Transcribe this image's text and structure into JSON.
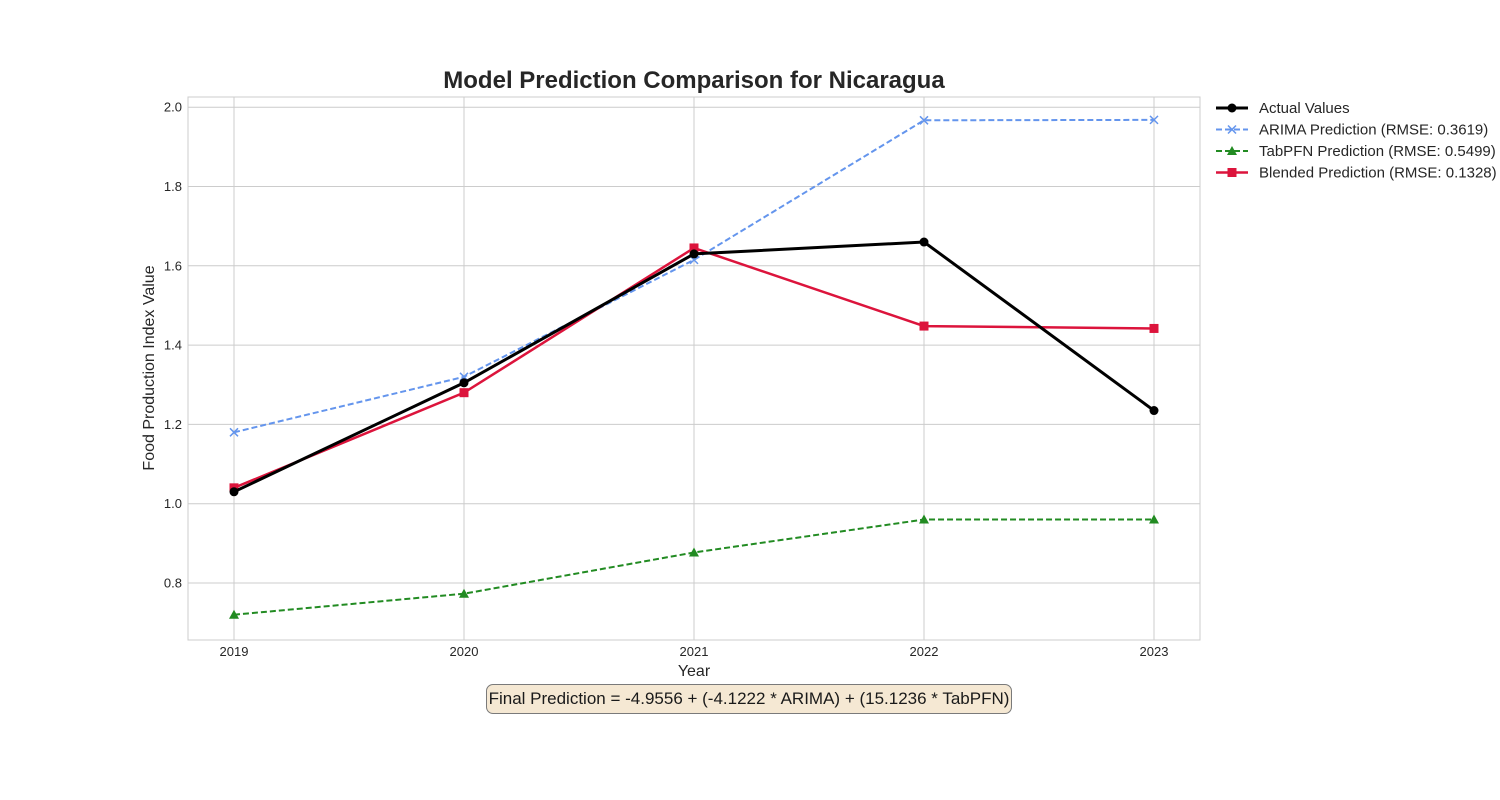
{
  "chart_data": {
    "type": "line",
    "title": "Model Prediction Comparison for Nicaragua",
    "xlabel": "Year",
    "ylabel": "Food Production Index Value",
    "x": [
      "2019",
      "2020",
      "2021",
      "2022",
      "2023"
    ],
    "xticks": [
      "2019",
      "2020",
      "2021",
      "2022",
      "2023"
    ],
    "yticks": [
      "0.8",
      "1.0",
      "1.2",
      "1.4",
      "1.6",
      "1.8",
      "2.0"
    ],
    "ytick_values": [
      0.8,
      1.0,
      1.2,
      1.4,
      1.6,
      1.8,
      2.0
    ],
    "ylim": [
      0.66,
      2.03
    ],
    "grid": true,
    "legend_position": "outside top-right",
    "series": [
      {
        "name": "Actual Values",
        "values": [
          1.03,
          1.305,
          1.63,
          1.66,
          1.235
        ],
        "color": "#000000",
        "style": "solid",
        "marker": "circle"
      },
      {
        "name": "ARIMA Prediction (RMSE: 0.3619)",
        "values": [
          1.18,
          1.32,
          1.615,
          1.967,
          1.968
        ],
        "color": "#6495ed",
        "style": "dashed",
        "marker": "x"
      },
      {
        "name": "TabPFN Prediction (RMSE: 0.5499)",
        "values": [
          0.72,
          0.773,
          0.877,
          0.96,
          0.96
        ],
        "color": "#228b22",
        "style": "dashed",
        "marker": "triangle"
      },
      {
        "name": "Blended Prediction (RMSE: 0.1328)",
        "values": [
          1.04,
          1.28,
          1.645,
          1.448,
          1.442
        ],
        "color": "#dc143c",
        "style": "solid",
        "marker": "square"
      }
    ],
    "annotation": "Final Prediction = -4.9556 + (-4.1222 * ARIMA) + (15.1236 * TabPFN)"
  }
}
